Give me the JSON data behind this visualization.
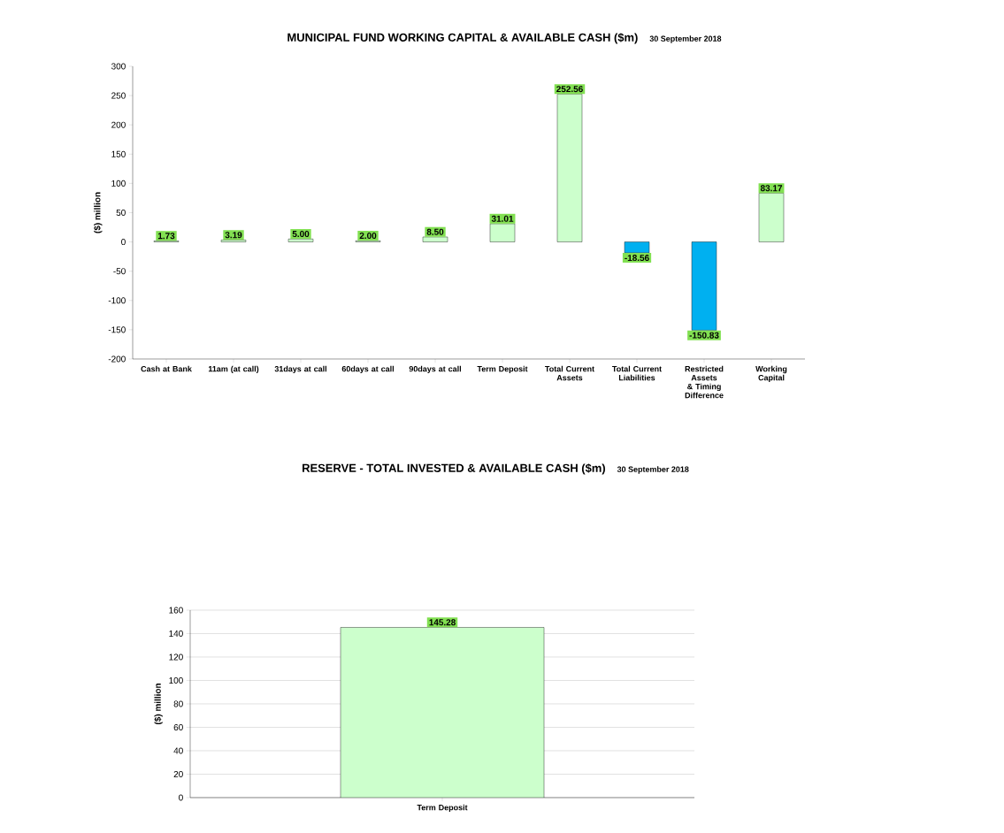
{
  "chart_data": [
    {
      "type": "bar",
      "title": "MUNICIPAL FUND WORKING CAPITAL & AVAILABLE CASH ($m)",
      "subtitle": "30 September 2018",
      "ylabel": "($) million",
      "categories": [
        "Cash at Bank",
        "11am (at call)",
        "31days at call",
        "60days at call",
        "90days at call",
        "Term Deposit",
        "Total Current Assets",
        "Total Current Liabilities",
        "Restricted Assets & Timing Difference",
        "Working Capital"
      ],
      "values": [
        1.73,
        3.19,
        5.0,
        2.0,
        8.5,
        31.01,
        252.56,
        -18.56,
        -150.83,
        83.17
      ],
      "colors": [
        "#ccffcc",
        "#ccffcc",
        "#ccffcc",
        "#ccffcc",
        "#ccffcc",
        "#ccffcc",
        "#ccffcc",
        "#00b0f0",
        "#00b0f0",
        "#ccffcc"
      ],
      "value_labels": [
        "1.73",
        "3.19",
        "5.00",
        "2.00",
        "8.50",
        "31.01",
        "252.56",
        "-18.56",
        "-150.83",
        "83.17"
      ],
      "ylim": [
        -200,
        300
      ],
      "yticks": [
        -200,
        -150,
        -100,
        -50,
        0,
        50,
        100,
        150,
        200,
        250,
        300
      ]
    },
    {
      "type": "bar",
      "title": "RESERVE  - TOTAL INVESTED & AVAILABLE CASH ($m)",
      "subtitle": "30 September 2018",
      "ylabel": "($) million",
      "categories": [
        "Term Deposit"
      ],
      "values": [
        145.28
      ],
      "colors": [
        "#ccffcc"
      ],
      "ylim": [
        0,
        160
      ],
      "yticks": [
        0,
        20,
        40,
        60,
        80,
        100,
        120,
        140,
        160
      ],
      "grid": "y",
      "data_labels": true
    }
  ]
}
